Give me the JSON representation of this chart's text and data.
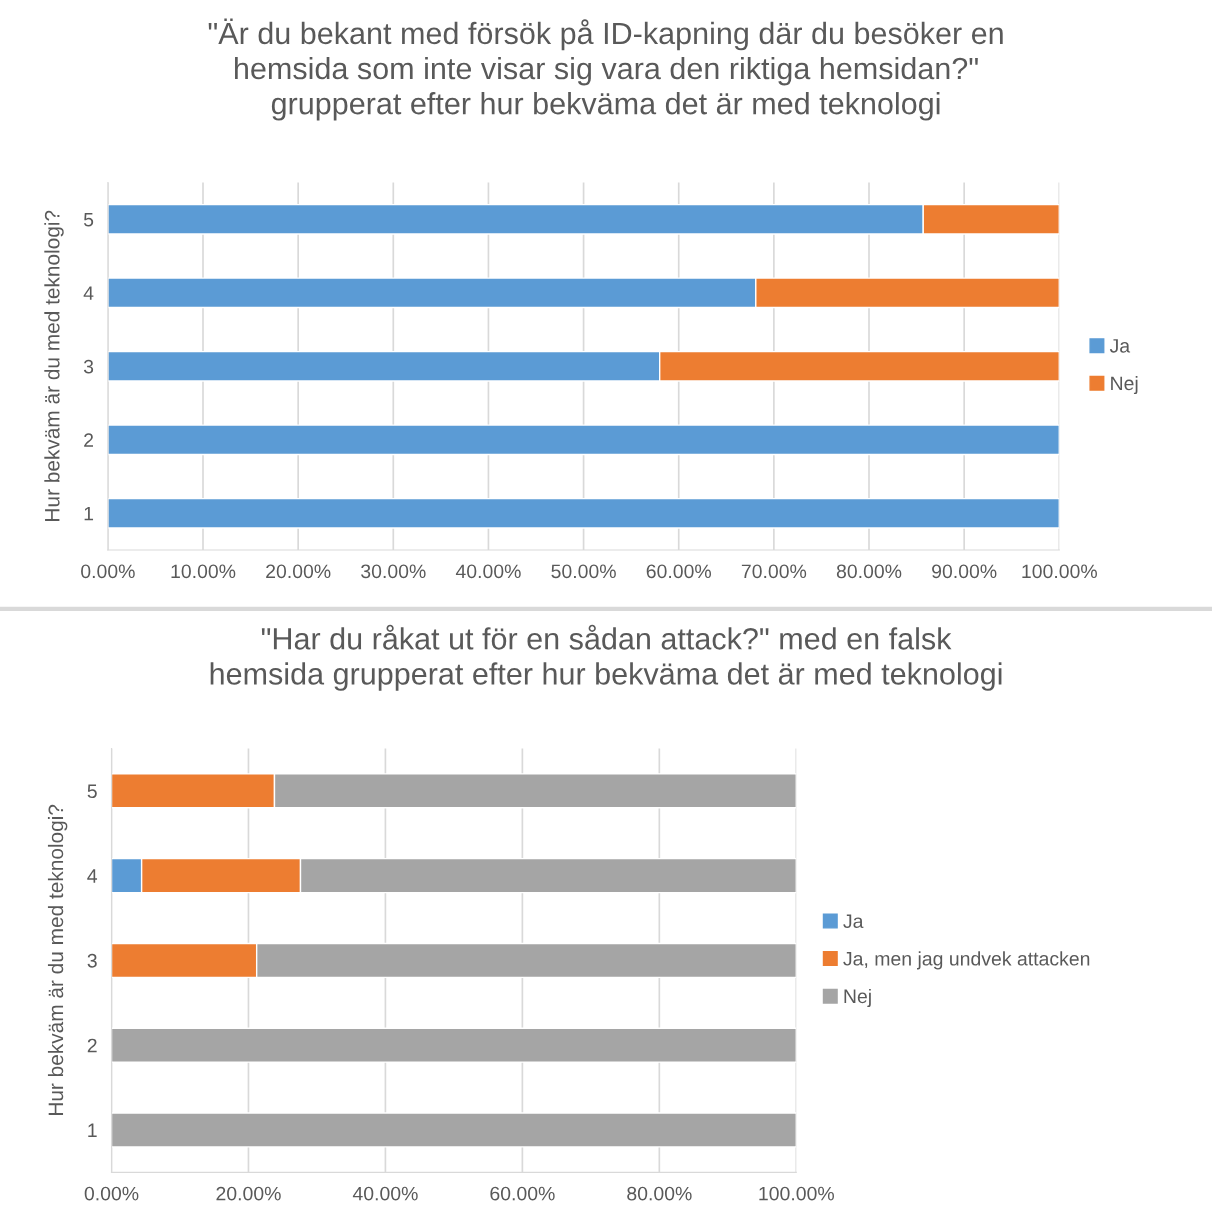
{
  "chart_data": [
    {
      "type": "bar",
      "orientation": "horizontal",
      "stacked": true,
      "title": "\"Är du bekant med försök på ID-kapning där du besöker en\nhemsida som inte visar sig vara den riktiga hemsidan?\"\ngrupperat efter hur bekväma det är med teknologi",
      "ylabel": "Hur bekväm är du med teknologi?",
      "categories": [
        "5",
        "4",
        "3",
        "2",
        "1"
      ],
      "series": [
        {
          "name": "Ja",
          "color": "#5b9bd5",
          "values": [
            85.7,
            68.1,
            58.0,
            100,
            100
          ]
        },
        {
          "name": "Nej",
          "color": "#ed7d31",
          "values": [
            14.3,
            31.9,
            42.0,
            null,
            null
          ]
        }
      ],
      "xlim": [
        0,
        100
      ],
      "xticks": [
        {
          "value": 0,
          "label": "0.00%"
        },
        {
          "value": 10,
          "label": "10.00%"
        },
        {
          "value": 20,
          "label": "20.00%"
        },
        {
          "value": 30,
          "label": "30.00%"
        },
        {
          "value": 40,
          "label": "40.00%"
        },
        {
          "value": 50,
          "label": "50.00%"
        },
        {
          "value": 60,
          "label": "60.00%"
        },
        {
          "value": 70,
          "label": "70.00%"
        },
        {
          "value": 80,
          "label": "80.00%"
        },
        {
          "value": 90,
          "label": "90.00%"
        },
        {
          "value": 100,
          "label": "100.00%"
        }
      ],
      "grid": "x",
      "legend": "right"
    },
    {
      "type": "bar",
      "orientation": "horizontal",
      "stacked": true,
      "title": "\"Har du råkat ut för en sådan attack?\" med en falsk\nhemsida grupperat efter hur bekväma det är med teknologi",
      "ylabel": "Hur bekväm är du med teknologi?",
      "categories": [
        "5",
        "4",
        "3",
        "2",
        "1"
      ],
      "series": [
        {
          "name": "Ja",
          "color": "#5b9bd5",
          "values": [
            null,
            4.4,
            null,
            null,
            null
          ]
        },
        {
          "name": "Ja, men jag undvek attacken",
          "color": "#ed7d31",
          "values": [
            23.8,
            23.2,
            21.2,
            null,
            null
          ]
        },
        {
          "name": "Nej",
          "color": "#a5a5a5",
          "values": [
            76.2,
            72.4,
            78.8,
            100,
            100
          ]
        }
      ],
      "xlim": [
        0,
        100
      ],
      "xticks": [
        {
          "value": 0,
          "label": "0.00%"
        },
        {
          "value": 20,
          "label": "20.00%"
        },
        {
          "value": 40,
          "label": "40.00%"
        },
        {
          "value": 60,
          "label": "60.00%"
        },
        {
          "value": 80,
          "label": "80.00%"
        },
        {
          "value": 100,
          "label": "100.00%"
        }
      ],
      "grid": "x",
      "legend": "right"
    }
  ]
}
